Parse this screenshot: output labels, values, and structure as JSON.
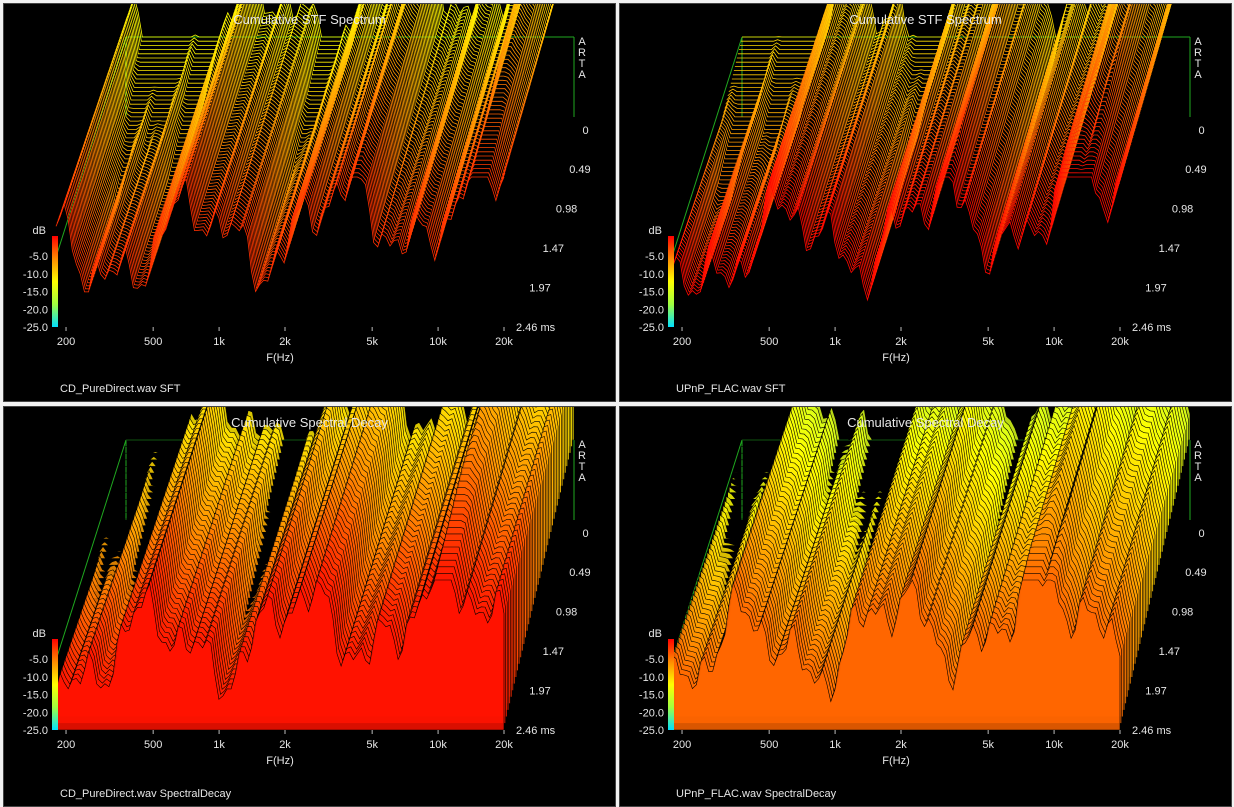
{
  "colorbar_colors": [
    "#ff0000",
    "#ff8c00",
    "#ffff00",
    "#a0ff40",
    "#00e0ff"
  ],
  "chart_data": [
    {
      "type": "waterfall",
      "title": "Cumulative STF Spectrum",
      "caption": "CD_PureDirect.wav SFT",
      "xlabel": "F(Hz)",
      "zlabel": "dB",
      "zunit": "ms",
      "brand": "ARTA",
      "x_ticks": [
        "200",
        "500",
        "1k",
        "2k",
        "5k",
        "10k",
        "20k"
      ],
      "db_ticks": [
        "-5.0",
        "-10.0",
        "-15.0",
        "-20.0",
        "-25.0"
      ],
      "time_ticks": [
        "0",
        "0.49",
        "0.98",
        "1.47",
        "1.97",
        "2.46 ms"
      ],
      "xlim": [
        180,
        20000
      ],
      "ylim_db": [
        -25,
        0
      ],
      "zlim_ms": [
        0,
        2.46
      ],
      "slices": 70,
      "shaded": false
    },
    {
      "type": "waterfall",
      "title": "Cumulative STF Spectrum",
      "caption": "UPnP_FLAC.wav SFT",
      "xlabel": "F(Hz)",
      "zlabel": "dB",
      "zunit": "ms",
      "brand": "ARTA",
      "x_ticks": [
        "200",
        "500",
        "1k",
        "2k",
        "5k",
        "10k",
        "20k"
      ],
      "db_ticks": [
        "-5.0",
        "-10.0",
        "-15.0",
        "-20.0",
        "-25.0"
      ],
      "time_ticks": [
        "0",
        "0.49",
        "0.98",
        "1.47",
        "1.97",
        "2.46 ms"
      ],
      "xlim": [
        180,
        20000
      ],
      "ylim_db": [
        -25,
        0
      ],
      "zlim_ms": [
        0,
        2.46
      ],
      "slices": 70,
      "shaded": false
    },
    {
      "type": "waterfall",
      "title": "Cumulative Spectral Decay",
      "caption": "CD_PureDirect.wav SpectralDecay",
      "xlabel": "F(Hz)",
      "zlabel": "dB",
      "zunit": "ms",
      "brand": "ARTA",
      "x_ticks": [
        "200",
        "500",
        "1k",
        "2k",
        "5k",
        "10k",
        "20k"
      ],
      "db_ticks": [
        "-5.0",
        "-10.0",
        "-15.0",
        "-20.0",
        "-25.0"
      ],
      "time_ticks": [
        "0",
        "0.49",
        "0.98",
        "1.47",
        "1.97",
        "2.46 ms"
      ],
      "xlim": [
        180,
        20000
      ],
      "ylim_db": [
        -25,
        0
      ],
      "zlim_ms": [
        0,
        2.46
      ],
      "slices": 45,
      "shaded": true
    },
    {
      "type": "waterfall",
      "title": "Cumulative Spectral Decay",
      "caption": "UPnP_FLAC.wav SpectralDecay",
      "xlabel": "F(Hz)",
      "zlabel": "dB",
      "zunit": "ms",
      "brand": "ARTA",
      "x_ticks": [
        "200",
        "500",
        "1k",
        "2k",
        "5k",
        "10k",
        "20k"
      ],
      "db_ticks": [
        "-5.0",
        "-10.0",
        "-15.0",
        "-20.0",
        "-25.0"
      ],
      "time_ticks": [
        "0",
        "0.49",
        "0.98",
        "1.47",
        "1.97",
        "2.46 ms"
      ],
      "xlim": [
        180,
        20000
      ],
      "ylim_db": [
        -25,
        0
      ],
      "zlim_ms": [
        0,
        2.46
      ],
      "slices": 45,
      "shaded": true
    }
  ]
}
